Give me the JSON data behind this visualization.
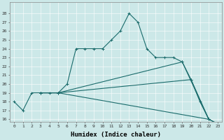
{
  "title": "",
  "xlabel": "Humidex (Indice chaleur)",
  "ylabel": "",
  "bg_color": "#cce8e8",
  "line_color": "#1a6b6b",
  "ylim": [
    16,
    29
  ],
  "xlim": [
    -0.5,
    23.5
  ],
  "yticks": [
    16,
    17,
    18,
    19,
    20,
    21,
    22,
    23,
    24,
    25,
    26,
    27,
    28
  ],
  "xticks": [
    0,
    1,
    2,
    3,
    4,
    5,
    6,
    7,
    8,
    9,
    10,
    11,
    12,
    13,
    14,
    15,
    16,
    17,
    18,
    19,
    20,
    21,
    22,
    23
  ],
  "lines": [
    {
      "x": [
        0,
        1,
        2,
        3,
        4,
        5,
        6,
        7,
        8,
        9,
        10,
        11,
        12,
        13,
        14,
        15,
        16,
        17,
        18,
        19,
        20,
        21,
        22,
        23
      ],
      "y": [
        18,
        17,
        19,
        19,
        19,
        19,
        20,
        24,
        24,
        24,
        24,
        25,
        26,
        28,
        27,
        24,
        23,
        23,
        23,
        22.5,
        20.5,
        18,
        16,
        15.5
      ]
    },
    {
      "x": [
        3,
        5,
        22,
        23
      ],
      "y": [
        19,
        19,
        16,
        15.5
      ]
    },
    {
      "x": [
        3,
        5,
        20,
        22
      ],
      "y": [
        19,
        19,
        20.5,
        16
      ]
    },
    {
      "x": [
        3,
        5,
        19,
        22
      ],
      "y": [
        19,
        19,
        22.5,
        16
      ]
    }
  ]
}
